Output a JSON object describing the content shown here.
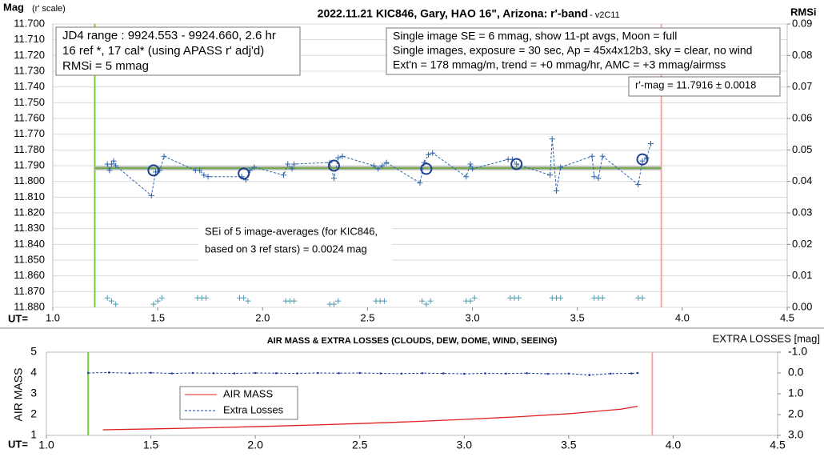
{
  "chart_data": [
    {
      "type": "scatter",
      "title": "2022.11.21 KIC846, Gary, HAO 16\", Arizona: r'-band",
      "subtitle": " - v2C11",
      "ylabel": "Mag",
      "ylabel_note": "(r' scale)",
      "y2label": "RMSi",
      "xlabel": "UT=",
      "xlim": [
        1.0,
        4.5
      ],
      "xticks": [
        {
          "value": 1.0,
          "label": "1.0"
        },
        {
          "value": 1.5,
          "label": "1.5"
        },
        {
          "value": 2.0,
          "label": "2.0"
        },
        {
          "value": 2.5,
          "label": "2.5"
        },
        {
          "value": 3.0,
          "label": "3.0"
        },
        {
          "value": 3.5,
          "label": "3.5"
        },
        {
          "value": 4.0,
          "label": "4.0"
        },
        {
          "value": 4.5,
          "label": "4.5"
        }
      ],
      "ylim": [
        11.88,
        11.7
      ],
      "yticks": [
        {
          "value": 11.7,
          "label": "11.700"
        },
        {
          "value": 11.71,
          "label": "11.710"
        },
        {
          "value": 11.72,
          "label": "11.720"
        },
        {
          "value": 11.73,
          "label": "11.730"
        },
        {
          "value": 11.74,
          "label": "11.740"
        },
        {
          "value": 11.75,
          "label": "11.750"
        },
        {
          "value": 11.76,
          "label": "11.760"
        },
        {
          "value": 11.77,
          "label": "11.770"
        },
        {
          "value": 11.78,
          "label": "11.780"
        },
        {
          "value": 11.79,
          "label": "11.790"
        },
        {
          "value": 11.8,
          "label": "11.800"
        },
        {
          "value": 11.81,
          "label": "11.810"
        },
        {
          "value": 11.82,
          "label": "11.820"
        },
        {
          "value": 11.83,
          "label": "11.830"
        },
        {
          "value": 11.84,
          "label": "11.840"
        },
        {
          "value": 11.85,
          "label": "11.850"
        },
        {
          "value": 11.86,
          "label": "11.860"
        },
        {
          "value": 11.87,
          "label": "11.870"
        },
        {
          "value": 11.88,
          "label": "11.880"
        }
      ],
      "y2lim": [
        0,
        0.09
      ],
      "y2ticks": [
        {
          "value": 0,
          "label": "0.00"
        },
        {
          "value": 0.01,
          "label": "0.01"
        },
        {
          "value": 0.02,
          "label": "0.02"
        },
        {
          "value": 0.03,
          "label": "0.03"
        },
        {
          "value": 0.04,
          "label": "0.04"
        },
        {
          "value": 0.05,
          "label": "0.05"
        },
        {
          "value": 0.06,
          "label": "0.06"
        },
        {
          "value": 0.07,
          "label": "0.07"
        },
        {
          "value": 0.08,
          "label": "0.08"
        },
        {
          "value": 0.09,
          "label": "0.09"
        }
      ],
      "grid": true,
      "vlines": [
        {
          "x": 1.2,
          "color": "#7ac943"
        },
        {
          "x": 3.9,
          "color": "#f4a7a7"
        }
      ],
      "hlines": [
        {
          "y": 11.7916,
          "x": [
            1.2,
            3.9
          ],
          "color": "#b8b8b8",
          "width": 5
        },
        {
          "y": 11.7916,
          "x": [
            1.2,
            3.9
          ],
          "color": "#70ad47",
          "width": 2
        }
      ],
      "series": [
        {
          "marker": "plus",
          "line": "dashed",
          "color": "#2e64a8",
          "x": [
            1.26,
            1.27,
            1.28,
            1.29,
            1.3,
            1.47,
            1.49,
            1.51,
            1.53,
            1.68,
            1.7,
            1.72,
            1.74,
            1.9,
            1.92,
            1.94,
            1.96,
            2.1,
            2.12,
            2.14,
            2.15,
            2.32,
            2.34,
            2.36,
            2.38,
            2.53,
            2.55,
            2.57,
            2.59,
            2.75,
            2.77,
            2.79,
            2.81,
            2.97,
            2.99,
            3.0,
            3.17,
            3.19,
            3.21,
            3.37,
            3.38,
            3.4,
            3.42,
            3.57,
            3.58,
            3.6,
            3.62,
            3.79,
            3.81,
            3.83,
            3.85
          ],
          "values": [
            11.789,
            11.793,
            11.789,
            11.787,
            11.79,
            11.809,
            11.794,
            11.793,
            11.784,
            11.793,
            11.793,
            11.796,
            11.797,
            11.797,
            11.799,
            11.793,
            11.791,
            11.796,
            11.789,
            11.792,
            11.789,
            11.788,
            11.798,
            11.785,
            11.784,
            11.79,
            11.792,
            11.79,
            11.788,
            11.801,
            11.788,
            11.783,
            11.782,
            11.797,
            11.789,
            11.792,
            11.786,
            11.786,
            11.789,
            11.796,
            11.773,
            11.806,
            11.791,
            11.784,
            11.797,
            11.798,
            11.784,
            11.802,
            11.787,
            11.785,
            11.776
          ]
        },
        {
          "marker": "circle",
          "color": "#1f3f8f",
          "x": [
            1.48,
            1.91,
            2.34,
            2.78,
            3.21,
            3.81
          ],
          "values": [
            11.793,
            11.795,
            11.79,
            11.792,
            11.789,
            11.786
          ]
        },
        {
          "marker": "plus",
          "color": "#4a9bb0",
          "axis": "y2",
          "x": [
            1.26,
            1.28,
            1.3,
            1.48,
            1.5,
            1.52,
            1.69,
            1.71,
            1.73,
            1.89,
            1.91,
            1.93,
            2.11,
            2.13,
            2.15,
            2.32,
            2.34,
            2.36,
            2.54,
            2.56,
            2.58,
            2.76,
            2.78,
            2.8,
            2.97,
            2.99,
            3.01,
            3.18,
            3.2,
            3.22,
            3.38,
            3.4,
            3.42,
            3.58,
            3.6,
            3.62,
            3.79,
            3.81
          ],
          "values": [
            0.003,
            0.002,
            0.001,
            0.001,
            0.002,
            0.003,
            0.003,
            0.003,
            0.003,
            0.003,
            0.003,
            0.002,
            0.002,
            0.002,
            0.002,
            0.001,
            0.001,
            0.002,
            0.002,
            0.002,
            0.002,
            0.002,
            0.001,
            0.002,
            0.002,
            0.002,
            0.003,
            0.003,
            0.003,
            0.003,
            0.003,
            0.003,
            0.003,
            0.003,
            0.003,
            0.003,
            0.003,
            0.003
          ]
        }
      ],
      "annotations": [
        {
          "lines": [
            "JD4 range : 9924.553 - 9924.660,  2.6  hr",
            "16 ref *, 17 cal* (using APASS r' adj'd)",
            "RMSi = 5 mmag"
          ]
        },
        {
          "lines": [
            "Single image SE = 6 mmag, show  11-pt avgs, Moon = full",
            "Single images, exposure = 30 sec, Ap = 45x4x12b3, sky = clear, no wind",
            "Ext'n = 178 mmag/m, trend = +0  mmag/hr, AMC = +3 mmag/airmss"
          ]
        },
        {
          "lines": [
            "r'-mag = 11.7916 ± 0.0018"
          ]
        },
        {
          "lines": [
            "SEi of 5 image-averages (for KIC846,",
            "based on 3 ref stars) = 0.0024 mag"
          ]
        }
      ]
    },
    {
      "type": "line",
      "title": "AIR MASS & EXTRA LOSSES (CLOUDS, DEW, DOME, WIND, SEEING)",
      "ylabel": "AIR MASS",
      "y2label": "EXTRA LOSSES [mag]",
      "xlabel": "UT=",
      "xlim": [
        1.0,
        4.5
      ],
      "xticks": [
        {
          "value": 1.0,
          "label": "1.0"
        },
        {
          "value": 1.5,
          "label": "1.5"
        },
        {
          "value": 2.0,
          "label": "2.0"
        },
        {
          "value": 2.5,
          "label": "2.5"
        },
        {
          "value": 3.0,
          "label": "3.0"
        },
        {
          "value": 3.5,
          "label": "3.5"
        },
        {
          "value": 4.0,
          "label": "4.0"
        },
        {
          "value": 4.5,
          "label": "4.5"
        }
      ],
      "ylim": [
        1,
        5
      ],
      "yticks": [
        1,
        2,
        3,
        4,
        5
      ],
      "y2lim": [
        3.0,
        -1.0
      ],
      "y2ticks": [
        {
          "value": -1.0,
          "label": "-1.0"
        },
        {
          "value": 0.0,
          "label": "0.0"
        },
        {
          "value": 1.0,
          "label": "1.0"
        },
        {
          "value": 2.0,
          "label": "2.0"
        },
        {
          "value": 3.0,
          "label": "3.0"
        }
      ],
      "grid": false,
      "vlines": [
        {
          "x": 1.2,
          "color": "#7ac943"
        },
        {
          "x": 3.9,
          "color": "#f4a7a7"
        }
      ],
      "series": [
        {
          "name": "AIR MASS",
          "color": "#e02020",
          "line": "solid",
          "x": [
            1.27,
            1.5,
            1.75,
            2.0,
            2.25,
            2.5,
            2.75,
            3.0,
            3.25,
            3.5,
            3.75,
            3.83
          ],
          "values": [
            1.27,
            1.31,
            1.36,
            1.42,
            1.49,
            1.57,
            1.66,
            1.77,
            1.89,
            2.04,
            2.26,
            2.4
          ]
        },
        {
          "name": "Extra Losses",
          "color": "#1f3fa0",
          "line": "dashed",
          "marker": "dot",
          "axis": "y2",
          "x": [
            1.2,
            1.3,
            1.4,
            1.5,
            1.6,
            1.7,
            1.8,
            1.9,
            2.0,
            2.1,
            2.2,
            2.3,
            2.4,
            2.5,
            2.6,
            2.7,
            2.8,
            2.9,
            3.0,
            3.1,
            3.2,
            3.3,
            3.4,
            3.5,
            3.6,
            3.7,
            3.8,
            3.83
          ],
          "values": [
            0.0,
            -0.02,
            0.01,
            -0.01,
            0.02,
            0.0,
            0.01,
            0.02,
            0.0,
            0.01,
            0.02,
            0.0,
            0.01,
            0.0,
            0.02,
            0.03,
            0.01,
            0.02,
            0.04,
            0.02,
            0.03,
            0.01,
            0.04,
            0.03,
            0.1,
            0.03,
            0.02,
            0.0
          ]
        }
      ],
      "legend": "lower-left"
    }
  ]
}
